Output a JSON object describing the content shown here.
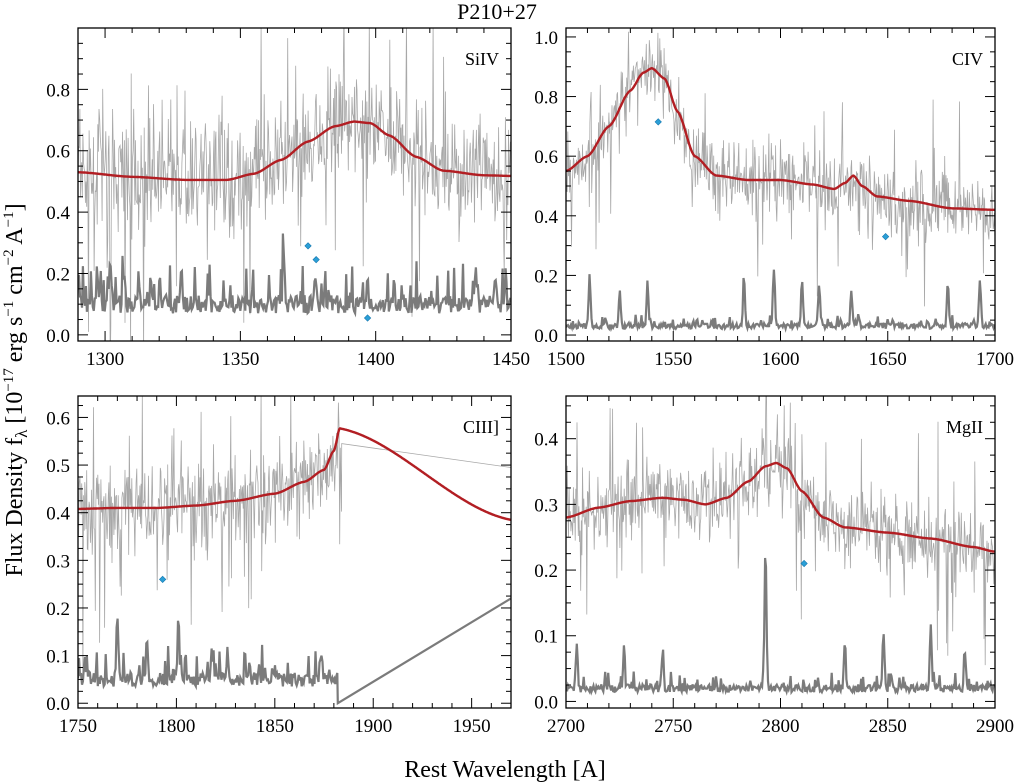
{
  "title": "P210+27",
  "xlabel": "Rest Wavelength [A]",
  "ylabel": "Flux Density f",
  "ylabel_sub": "λ",
  "ylabel_units": [
    {
      "t": " [10"
    },
    {
      "t": "−17",
      "sup": true
    },
    {
      "t": " erg s"
    },
    {
      "t": "−1",
      "sup": true
    },
    {
      "t": " cm"
    },
    {
      "t": "−2",
      "sup": true
    },
    {
      "t": " A"
    },
    {
      "t": "−1",
      "sup": true
    },
    {
      "t": "]"
    }
  ],
  "colors": {
    "model": "#b21e23",
    "spectrum": "#a8a8a8",
    "error": "#7b7b7b",
    "marker": "#2b9fd6"
  },
  "chart_data": [
    {
      "type": "line",
      "label": "SiIV",
      "xlim": [
        1290,
        1450
      ],
      "ylim": [
        -0.02,
        1.0
      ],
      "xticks": [
        1300,
        1350,
        1400,
        1450
      ],
      "yticks": [
        0.0,
        0.2,
        0.4,
        0.6,
        0.8
      ],
      "ytick_labels": [
        "0.0",
        "0.2",
        "0.4",
        "0.6",
        "0.8"
      ],
      "spectrum": {
        "mean": 0.53,
        "scatter": 0.15
      },
      "model": {
        "x": [
          1290,
          1310,
          1330,
          1345,
          1355,
          1365,
          1375,
          1385,
          1392,
          1398,
          1405,
          1415,
          1425,
          1440,
          1450
        ],
        "y": [
          0.53,
          0.515,
          0.505,
          0.505,
          0.525,
          0.57,
          0.63,
          0.68,
          0.695,
          0.69,
          0.65,
          0.58,
          0.535,
          0.52,
          0.518
        ]
      },
      "error": {
        "base": 0.1,
        "peaks": [
          [
            1297,
            0.2
          ],
          [
            1302,
            0.25
          ],
          [
            1307,
            0.21
          ],
          [
            1317,
            0.2
          ],
          [
            1328,
            0.18
          ],
          [
            1366,
            0.29
          ],
          [
            1378,
            0.19
          ],
          [
            1397,
            0.17
          ],
          [
            1437,
            0.23
          ],
          [
            1448,
            0.19
          ]
        ]
      },
      "markers": [
        {
          "x": 1375,
          "y": 0.29
        },
        {
          "x": 1378,
          "y": 0.245
        },
        {
          "x": 1397,
          "y": 0.055
        }
      ]
    },
    {
      "type": "line",
      "label": "CIV",
      "xlim": [
        1500,
        1700
      ],
      "ylim": [
        -0.02,
        1.03
      ],
      "xticks": [
        1500,
        1550,
        1600,
        1650,
        1700
      ],
      "yticks": [
        0.0,
        0.2,
        0.4,
        0.6,
        0.8,
        1.0
      ],
      "ytick_labels": [
        "0.0",
        "0.2",
        "0.4",
        "0.6",
        "0.8",
        "1.0"
      ],
      "spectrum": {
        "mean": 0.55,
        "scatter": 0.1
      },
      "model": {
        "x": [
          1500,
          1510,
          1520,
          1530,
          1536,
          1540,
          1546,
          1552,
          1560,
          1570,
          1585,
          1600,
          1615,
          1625,
          1630,
          1634,
          1638,
          1645,
          1660,
          1680,
          1700
        ],
        "y": [
          0.55,
          0.6,
          0.7,
          0.82,
          0.88,
          0.895,
          0.86,
          0.75,
          0.6,
          0.535,
          0.52,
          0.52,
          0.505,
          0.49,
          0.51,
          0.535,
          0.5,
          0.465,
          0.45,
          0.425,
          0.42
        ]
      },
      "error": {
        "base": 0.03,
        "peaks": [
          [
            1511,
            0.21
          ],
          [
            1525,
            0.15
          ],
          [
            1538,
            0.18
          ],
          [
            1583,
            0.18
          ],
          [
            1597,
            0.22
          ],
          [
            1610,
            0.18
          ],
          [
            1618,
            0.17
          ],
          [
            1633,
            0.15
          ],
          [
            1678,
            0.18
          ],
          [
            1693,
            0.19
          ]
        ]
      },
      "markers": [
        {
          "x": 1543,
          "y": 0.715
        },
        {
          "x": 1649,
          "y": 0.33
        }
      ]
    },
    {
      "type": "line",
      "label": "CIII]",
      "xlim": [
        1750,
        1970
      ],
      "ylim": [
        -0.01,
        0.645
      ],
      "xticks": [
        1750,
        1800,
        1850,
        1900,
        1950
      ],
      "yticks": [
        0.0,
        0.1,
        0.2,
        0.3,
        0.4,
        0.5,
        0.6
      ],
      "ytick_labels": [
        "0.0",
        "0.1",
        "0.2",
        "0.3",
        "0.4",
        "0.5",
        "0.6"
      ],
      "spectrum": {
        "mean": 0.43,
        "scatter": 0.08,
        "end_x": 1884
      },
      "spectrum_tail": {
        "x": [
          1884,
          1970
        ],
        "y": [
          0.545,
          0.495
        ]
      },
      "model": {
        "x": [
          1750,
          1770,
          1790,
          1810,
          1830,
          1850,
          1865,
          1875,
          1880,
          1883,
          1970
        ],
        "y": [
          0.408,
          0.41,
          0.41,
          0.415,
          0.425,
          0.44,
          0.465,
          0.49,
          0.53,
          0.577,
          0.385
        ]
      },
      "error": {
        "base": 0.05,
        "end_x": 1882,
        "tail": {
          "x": [
            1882,
            1970
          ],
          "y": [
            0.0,
            0.22
          ]
        },
        "peaks": [
          [
            1770,
            0.19
          ],
          [
            1785,
            0.14
          ],
          [
            1801,
            0.18
          ],
          [
            1818,
            0.12
          ],
          [
            1826,
            0.12
          ],
          [
            1837,
            0.09
          ],
          [
            1850,
            0.07
          ],
          [
            1872,
            0.04
          ]
        ]
      },
      "markers": [
        {
          "x": 1793,
          "y": 0.26
        }
      ]
    },
    {
      "type": "line",
      "label": "MgII",
      "xlim": [
        2700,
        2900
      ],
      "ylim": [
        -0.01,
        0.465
      ],
      "xticks": [
        2700,
        2750,
        2800,
        2850,
        2900
      ],
      "yticks": [
        0.0,
        0.1,
        0.2,
        0.3,
        0.4
      ],
      "ytick_labels": [
        "0.0",
        "0.1",
        "0.2",
        "0.3",
        "0.4"
      ],
      "spectrum": {
        "mean": 0.3,
        "scatter": 0.05
      },
      "model": {
        "x": [
          2700,
          2715,
          2730,
          2745,
          2755,
          2765,
          2775,
          2785,
          2793,
          2798,
          2803,
          2810,
          2820,
          2830,
          2850,
          2870,
          2890,
          2900
        ],
        "y": [
          0.28,
          0.295,
          0.305,
          0.31,
          0.307,
          0.3,
          0.31,
          0.335,
          0.358,
          0.363,
          0.355,
          0.32,
          0.28,
          0.265,
          0.257,
          0.248,
          0.235,
          0.228
        ]
      },
      "error": {
        "base": 0.02,
        "peaks": [
          [
            2705,
            0.085
          ],
          [
            2727,
            0.08
          ],
          [
            2745,
            0.07
          ],
          [
            2793,
            0.235
          ],
          [
            2830,
            0.095
          ],
          [
            2848,
            0.11
          ],
          [
            2870,
            0.115
          ],
          [
            2886,
            0.07
          ]
        ]
      },
      "markers": [
        {
          "x": 2811,
          "y": 0.21
        }
      ]
    }
  ]
}
